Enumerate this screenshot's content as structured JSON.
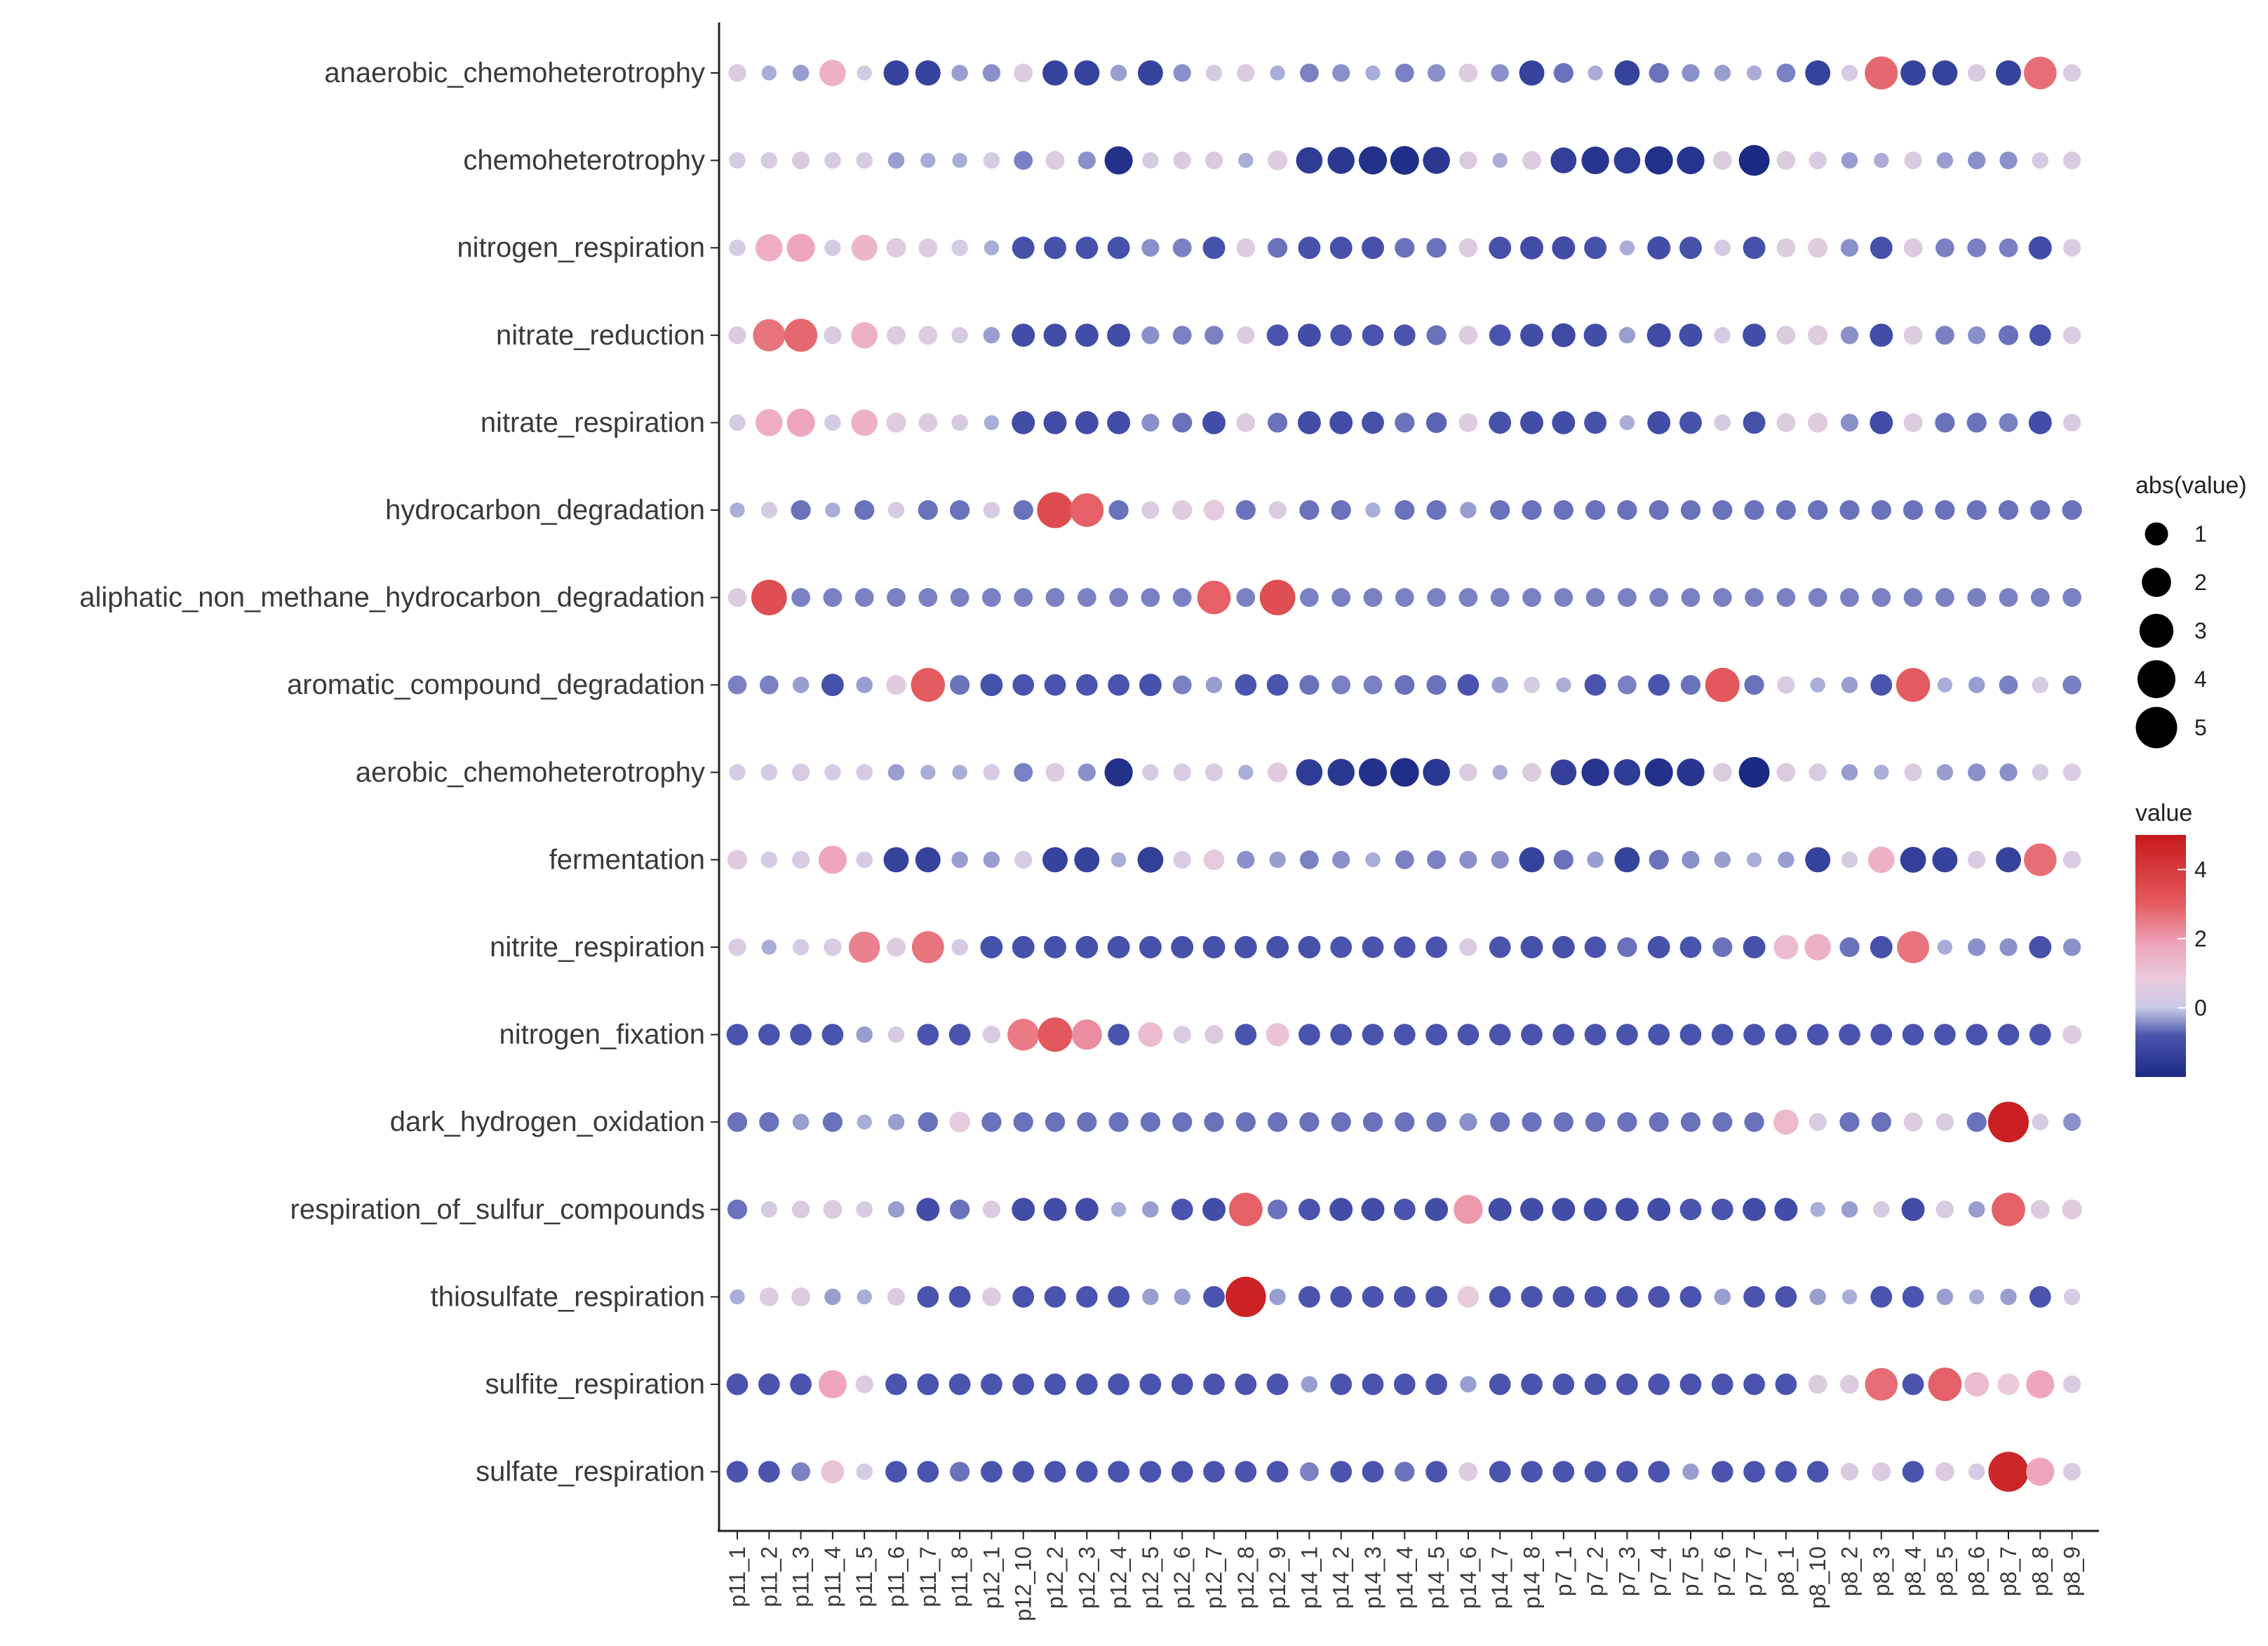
{
  "chart_data": {
    "type": "scatter",
    "subtype": "dot-matrix",
    "title": "",
    "xlabel": "",
    "ylabel": "",
    "x": [
      "p11_1",
      "p11_2",
      "p11_3",
      "p11_4",
      "p11_5",
      "p11_6",
      "p11_7",
      "p11_8",
      "p12_1",
      "p12_10",
      "p12_2",
      "p12_3",
      "p12_4",
      "p12_5",
      "p12_6",
      "p12_7",
      "p12_8",
      "p12_9",
      "p14_1",
      "p14_2",
      "p14_3",
      "p14_4",
      "p14_5",
      "p14_6",
      "p14_7",
      "p14_8",
      "p7_1",
      "p7_2",
      "p7_3",
      "p7_4",
      "p7_5",
      "p7_6",
      "p7_7",
      "p8_1",
      "p8_10",
      "p8_2",
      "p8_3",
      "p8_4",
      "p8_5",
      "p8_6",
      "p8_7",
      "p8_8",
      "p8_9"
    ],
    "y": [
      "anaerobic_chemoheterotrophy",
      "chemoheterotrophy",
      "nitrogen_respiration",
      "nitrate_reduction",
      "nitrate_respiration",
      "hydrocarbon_degradation",
      "aliphatic_non_methane_hydrocarbon_degradation",
      "aromatic_compound_degradation",
      "aerobic_chemoheterotrophy",
      "fermentation",
      "nitrite_respiration",
      "nitrogen_fixation",
      "dark_hydrogen_oxidation",
      "respiration_of_sulfur_compounds",
      "thiosulfate_respiration",
      "sulfite_respiration",
      "sulfate_respiration"
    ],
    "values": [
      [
        0.4,
        -0.2,
        -0.3,
        1.5,
        0.2,
        -1.3,
        -1.3,
        -0.3,
        -0.4,
        0.5,
        -1.3,
        -1.3,
        -0.3,
        -1.3,
        -0.4,
        0.3,
        0.4,
        -0.2,
        -0.5,
        -0.4,
        -0.2,
        -0.5,
        -0.4,
        0.5,
        -0.4,
        -1.3,
        -0.6,
        -0.2,
        -1.3,
        -0.6,
        -0.4,
        -0.3,
        -0.2,
        -0.5,
        -1.3,
        0.3,
        2.8,
        -1.3,
        -1.3,
        0.4,
        -1.3,
        2.7,
        0.4
      ],
      [
        0.3,
        0.3,
        0.4,
        0.3,
        0.3,
        -0.3,
        -0.2,
        -0.2,
        0.3,
        -0.5,
        0.5,
        -0.4,
        -1.8,
        0.3,
        0.4,
        0.4,
        -0.2,
        0.6,
        -1.5,
        -1.6,
        -1.8,
        -1.9,
        -1.6,
        0.4,
        -0.2,
        0.5,
        -1.4,
        -1.7,
        -1.5,
        -1.8,
        -1.7,
        0.5,
        -2.3,
        0.5,
        0.4,
        -0.3,
        -0.2,
        0.4,
        -0.3,
        -0.4,
        -0.4,
        0.3,
        0.4
      ],
      [
        0.3,
        1.6,
        1.8,
        0.3,
        1.4,
        0.6,
        0.5,
        0.3,
        -0.2,
        -0.9,
        -0.9,
        -0.9,
        -0.9,
        -0.4,
        -0.5,
        -0.9,
        0.5,
        -0.6,
        -0.9,
        -0.9,
        -0.9,
        -0.6,
        -0.6,
        0.5,
        -0.9,
        -1.0,
        -1.0,
        -0.9,
        -0.2,
        -1.0,
        -0.9,
        0.3,
        -0.9,
        0.5,
        0.6,
        -0.4,
        -0.9,
        0.5,
        -0.5,
        -0.5,
        -0.5,
        -1.0,
        0.4
      ],
      [
        0.4,
        2.6,
        2.8,
        0.4,
        1.5,
        0.5,
        0.5,
        0.3,
        -0.3,
        -1.0,
        -1.0,
        -1.0,
        -1.0,
        -0.4,
        -0.5,
        -0.5,
        0.4,
        -0.8,
        -1.0,
        -0.8,
        -0.8,
        -0.8,
        -0.6,
        0.5,
        -0.8,
        -1.0,
        -1.1,
        -1.0,
        -0.3,
        -1.1,
        -1.0,
        0.3,
        -1.0,
        0.5,
        0.6,
        -0.4,
        -1.0,
        0.5,
        -0.5,
        -0.4,
        -0.6,
        -0.8,
        0.4
      ],
      [
        0.3,
        1.6,
        1.8,
        0.3,
        1.5,
        0.6,
        0.5,
        0.3,
        -0.2,
        -1.0,
        -1.0,
        -1.0,
        -1.0,
        -0.4,
        -0.6,
        -1.0,
        0.5,
        -0.6,
        -1.0,
        -1.0,
        -0.9,
        -0.6,
        -0.7,
        0.5,
        -0.9,
        -1.0,
        -1.0,
        -0.9,
        -0.2,
        -1.0,
        -0.9,
        0.3,
        -0.9,
        0.5,
        0.6,
        -0.4,
        -1.0,
        0.5,
        -0.6,
        -0.6,
        -0.5,
        -1.0,
        0.4
      ],
      [
        -0.2,
        0.3,
        -0.6,
        -0.2,
        -0.6,
        0.3,
        -0.6,
        -0.6,
        0.3,
        -0.6,
        3.5,
        2.9,
        -0.6,
        0.4,
        0.6,
        0.7,
        -0.6,
        0.4,
        -0.6,
        -0.6,
        -0.2,
        -0.6,
        -0.6,
        -0.3,
        -0.6,
        -0.6,
        -0.6,
        -0.6,
        -0.6,
        -0.6,
        -0.6,
        -0.6,
        -0.6,
        -0.6,
        -0.6,
        -0.6,
        -0.6,
        -0.6,
        -0.6,
        -0.6,
        -0.6,
        -0.6,
        -0.6
      ],
      [
        0.5,
        3.4,
        -0.5,
        -0.5,
        -0.5,
        -0.5,
        -0.5,
        -0.5,
        -0.5,
        -0.5,
        -0.5,
        -0.5,
        -0.5,
        -0.5,
        -0.5,
        2.9,
        -0.5,
        3.4,
        -0.5,
        -0.5,
        -0.5,
        -0.5,
        -0.5,
        -0.5,
        -0.5,
        -0.5,
        -0.5,
        -0.5,
        -0.5,
        -0.5,
        -0.5,
        -0.5,
        -0.5,
        -0.5,
        -0.5,
        -0.5,
        -0.5,
        -0.5,
        -0.5,
        -0.5,
        -0.5,
        -0.5,
        -0.5
      ],
      [
        -0.5,
        -0.5,
        -0.3,
        -0.9,
        -0.3,
        0.6,
        3.0,
        -0.6,
        -0.9,
        -0.8,
        -0.8,
        -0.8,
        -0.8,
        -0.9,
        -0.5,
        -0.3,
        -0.8,
        -0.8,
        -0.6,
        -0.5,
        -0.5,
        -0.6,
        -0.6,
        -0.8,
        -0.3,
        0.3,
        -0.2,
        -0.8,
        -0.5,
        -0.8,
        -0.6,
        3.1,
        -0.6,
        0.4,
        -0.2,
        -0.3,
        -0.8,
        3.0,
        -0.2,
        -0.3,
        -0.5,
        0.3,
        -0.5
      ],
      [
        0.3,
        0.3,
        0.4,
        0.3,
        0.3,
        -0.3,
        -0.2,
        -0.2,
        0.3,
        -0.5,
        0.5,
        -0.4,
        -1.8,
        0.3,
        0.4,
        0.4,
        -0.2,
        0.6,
        -1.5,
        -1.6,
        -1.8,
        -1.9,
        -1.6,
        0.4,
        -0.2,
        0.5,
        -1.4,
        -1.7,
        -1.5,
        -1.8,
        -1.7,
        0.5,
        -2.3,
        0.5,
        0.4,
        -0.3,
        -0.2,
        0.4,
        -0.3,
        -0.4,
        -0.4,
        0.3,
        0.4
      ],
      [
        0.6,
        0.3,
        0.4,
        1.8,
        0.3,
        -1.3,
        -1.3,
        -0.3,
        -0.3,
        0.4,
        -1.3,
        -1.3,
        -0.2,
        -1.4,
        0.4,
        0.7,
        -0.4,
        -0.3,
        -0.5,
        -0.4,
        -0.2,
        -0.5,
        -0.5,
        -0.4,
        -0.4,
        -1.3,
        -0.6,
        -0.3,
        -1.3,
        -0.6,
        -0.4,
        -0.3,
        -0.2,
        -0.3,
        -1.3,
        0.3,
        1.5,
        -1.4,
        -1.3,
        0.4,
        -1.3,
        2.7,
        0.4
      ],
      [
        0.4,
        -0.2,
        0.3,
        0.4,
        2.4,
        0.5,
        2.6,
        0.3,
        -0.9,
        -0.9,
        -0.9,
        -0.9,
        -0.9,
        -0.9,
        -0.9,
        -0.9,
        -0.9,
        -0.9,
        -0.9,
        -0.8,
        -0.8,
        -0.8,
        -0.8,
        0.4,
        -0.8,
        -0.9,
        -0.9,
        -0.8,
        -0.6,
        -0.9,
        -0.8,
        -0.6,
        -0.9,
        1.2,
        1.5,
        -0.6,
        -0.9,
        2.6,
        -0.2,
        -0.4,
        -0.4,
        -0.9,
        -0.4
      ],
      [
        -0.8,
        -0.8,
        -0.8,
        -0.8,
        -0.3,
        0.3,
        -0.8,
        -0.8,
        0.4,
        2.5,
        3.1,
        2.2,
        -0.8,
        1.2,
        0.4,
        0.5,
        -0.8,
        1.0,
        -0.8,
        -0.8,
        -0.8,
        -0.8,
        -0.8,
        -0.8,
        -0.8,
        -0.8,
        -0.8,
        -0.8,
        -0.8,
        -0.8,
        -0.8,
        -0.8,
        -0.8,
        -0.8,
        -0.8,
        -0.8,
        -0.8,
        -0.8,
        -0.8,
        -0.8,
        -0.8,
        -0.8,
        0.5
      ],
      [
        -0.6,
        -0.6,
        -0.3,
        -0.6,
        -0.2,
        -0.3,
        -0.6,
        0.7,
        -0.6,
        -0.6,
        -0.6,
        -0.6,
        -0.6,
        -0.6,
        -0.6,
        -0.6,
        -0.6,
        -0.6,
        -0.6,
        -0.6,
        -0.6,
        -0.6,
        -0.6,
        -0.4,
        -0.6,
        -0.6,
        -0.6,
        -0.6,
        -0.6,
        -0.6,
        -0.6,
        -0.6,
        -0.6,
        1.3,
        0.4,
        -0.6,
        -0.6,
        0.5,
        0.4,
        -0.6,
        4.8,
        0.3,
        -0.4
      ],
      [
        -0.6,
        0.3,
        0.4,
        0.5,
        0.3,
        -0.3,
        -1.0,
        -0.6,
        0.4,
        -1.0,
        -1.0,
        -1.0,
        -0.2,
        -0.3,
        -0.8,
        -1.0,
        2.9,
        -0.6,
        -0.8,
        -1.0,
        -1.0,
        -0.8,
        -1.0,
        2.0,
        -1.0,
        -1.0,
        -1.0,
        -1.0,
        -1.0,
        -1.0,
        -0.8,
        -0.8,
        -1.0,
        -1.0,
        -0.2,
        -0.3,
        0.3,
        -1.0,
        0.4,
        -0.3,
        2.9,
        0.5,
        0.6
      ],
      [
        -0.2,
        0.5,
        0.5,
        -0.3,
        -0.2,
        0.4,
        -0.8,
        -0.8,
        0.5,
        -0.8,
        -0.8,
        -0.8,
        -0.8,
        -0.3,
        -0.3,
        -0.8,
        4.7,
        -0.3,
        -0.8,
        -0.8,
        -0.8,
        -0.8,
        -0.8,
        0.8,
        -0.8,
        -0.8,
        -0.8,
        -0.8,
        -0.8,
        -0.8,
        -0.8,
        -0.3,
        -0.8,
        -0.8,
        -0.3,
        -0.2,
        -0.8,
        -0.8,
        -0.3,
        -0.2,
        -0.3,
        -0.8,
        0.3
      ],
      [
        -0.8,
        -0.8,
        -0.8,
        1.8,
        0.4,
        -0.8,
        -0.8,
        -0.8,
        -0.8,
        -0.8,
        -0.8,
        -0.8,
        -0.8,
        -0.8,
        -0.8,
        -0.8,
        -0.8,
        -0.8,
        -0.3,
        -0.8,
        -0.8,
        -0.8,
        -0.8,
        -0.3,
        -0.8,
        -0.8,
        -0.8,
        -0.8,
        -0.8,
        -0.8,
        -0.8,
        -0.8,
        -0.8,
        -0.8,
        0.5,
        0.5,
        2.7,
        -0.8,
        2.9,
        1.2,
        0.8,
        1.8,
        0.4
      ],
      [
        -0.8,
        -0.8,
        -0.5,
        1.0,
        0.3,
        -0.8,
        -0.8,
        -0.6,
        -0.8,
        -0.8,
        -0.8,
        -0.8,
        -0.8,
        -0.8,
        -0.8,
        -0.8,
        -0.8,
        -0.8,
        -0.5,
        -0.8,
        -0.8,
        -0.6,
        -0.8,
        0.5,
        -0.8,
        -0.8,
        -0.8,
        -0.8,
        -0.8,
        -0.8,
        -0.3,
        -0.8,
        -0.8,
        -0.8,
        -0.8,
        0.4,
        0.5,
        -0.8,
        0.5,
        0.3,
        4.6,
        1.8,
        0.4
      ]
    ],
    "size_legend": {
      "title": "abs(value)",
      "entries": [
        1,
        2,
        3,
        4,
        5
      ]
    },
    "color_legend": {
      "title": "value",
      "range": [
        -2.0,
        5.0
      ],
      "ticks": [
        4,
        2,
        0
      ],
      "stops": [
        {
          "v": -2.0,
          "c": "#1b2a83"
        },
        {
          "v": -0.8,
          "c": "#4a54ae"
        },
        {
          "v": 0.0,
          "c": "#c9cbe6"
        },
        {
          "v": 0.8,
          "c": "#e9cbdc"
        },
        {
          "v": 1.8,
          "c": "#efa6bd"
        },
        {
          "v": 3.0,
          "c": "#e45b5f"
        },
        {
          "v": 5.0,
          "c": "#c7191c"
        }
      ]
    },
    "legend_position": "right"
  }
}
